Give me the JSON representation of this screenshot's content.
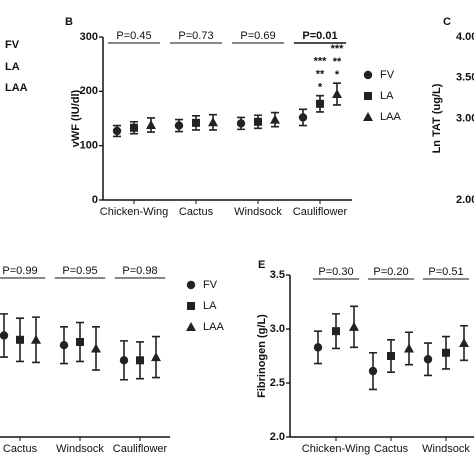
{
  "panel_a_legend": [
    "FV",
    "LA",
    "LAA"
  ],
  "chart_data": [
    {
      "type": "errorbar",
      "panel": "B",
      "ylabel": "vWF (IU/dl)",
      "categories": [
        "Chicken-Wing",
        "Cactus",
        "Windsock",
        "Cauliflower"
      ],
      "ylim": [
        0,
        300
      ],
      "yticks": [
        0,
        100,
        200,
        300
      ],
      "p_values": [
        "P=0.45",
        "P=0.73",
        "P=0.69",
        "P=0.01"
      ],
      "p_bold": [
        false,
        false,
        false,
        true
      ],
      "series": [
        {
          "name": "FV",
          "marker": "circle",
          "color": "#222222",
          "values": [
            127,
            137,
            141,
            152
          ],
          "errors": [
            10,
            11,
            11,
            15
          ]
        },
        {
          "name": "LA",
          "marker": "square",
          "color": "#222222",
          "values": [
            133,
            142,
            144,
            177
          ],
          "errors": [
            11,
            13,
            12,
            15
          ],
          "sig_labels": [
            null,
            null,
            null,
            [
              "***",
              "**",
              "*"
            ]
          ]
        },
        {
          "name": "LAA",
          "marker": "triangle",
          "color": "#222222",
          "values": [
            138,
            143,
            148,
            195
          ],
          "errors": [
            13,
            14,
            13,
            20
          ],
          "sig_labels": [
            null,
            null,
            null,
            [
              "***",
              "**",
              "*"
            ]
          ]
        }
      ]
    },
    {
      "type": "axis-only",
      "panel": "C",
      "ylabel": "Ln TAT (ug/L)",
      "ylim": [
        2,
        4
      ],
      "yticks": [
        {
          "value": 2,
          "label": "2.00"
        },
        {
          "value": 3,
          "label": "3.00"
        },
        {
          "value": 3.5,
          "label": "3.50"
        },
        {
          "value": 4,
          "label": "4.00"
        }
      ]
    },
    {
      "type": "errorbar",
      "panel": null,
      "categories": [
        "Cactus",
        "Windsock",
        "Cauliflower"
      ],
      "ylim": [
        2,
        3.5
      ],
      "p_values": [
        "P=0.99",
        "P=0.95",
        "P=0.98"
      ],
      "p_bold": [
        false,
        false,
        false
      ],
      "series": [
        {
          "name": "FV",
          "marker": "circle",
          "color": "#222222",
          "values": [
            2.94,
            2.85,
            2.71
          ],
          "errors": [
            0.2,
            0.17,
            0.18
          ]
        },
        {
          "name": "LA",
          "marker": "square",
          "color": "#222222",
          "values": [
            2.9,
            2.88,
            2.71
          ],
          "errors": [
            0.2,
            0.18,
            0.17
          ]
        },
        {
          "name": "LAA",
          "marker": "triangle",
          "color": "#222222",
          "values": [
            2.9,
            2.82,
            2.74
          ],
          "errors": [
            0.21,
            0.2,
            0.19
          ]
        }
      ]
    },
    {
      "type": "errorbar",
      "panel": "E",
      "ylabel": "Fibrinogen (g/L)",
      "categories": [
        "Chicken-Wing",
        "Cactus",
        "Windsock"
      ],
      "ylim": [
        2,
        3.5
      ],
      "yticks": [
        {
          "value": 2,
          "label": "2.0"
        },
        {
          "value": 2.5,
          "label": "2.5"
        },
        {
          "value": 3,
          "label": "3.0"
        },
        {
          "value": 3.5,
          "label": "3.5"
        }
      ],
      "p_values": [
        "P=0.30",
        "P=0.20",
        "P=0.51"
      ],
      "p_bold": [
        false,
        false,
        false
      ],
      "series": [
        {
          "name": "FV",
          "marker": "circle",
          "color": "#222222",
          "values": [
            2.83,
            2.61,
            2.72
          ],
          "errors": [
            0.15,
            0.17,
            0.15
          ]
        },
        {
          "name": "LA",
          "marker": "square",
          "color": "#222222",
          "values": [
            2.98,
            2.75,
            2.78
          ],
          "errors": [
            0.16,
            0.15,
            0.15
          ]
        },
        {
          "name": "LAA",
          "marker": "triangle",
          "color": "#222222",
          "values": [
            3.02,
            2.82,
            2.87
          ],
          "errors": [
            0.19,
            0.15,
            0.16
          ]
        }
      ]
    }
  ]
}
